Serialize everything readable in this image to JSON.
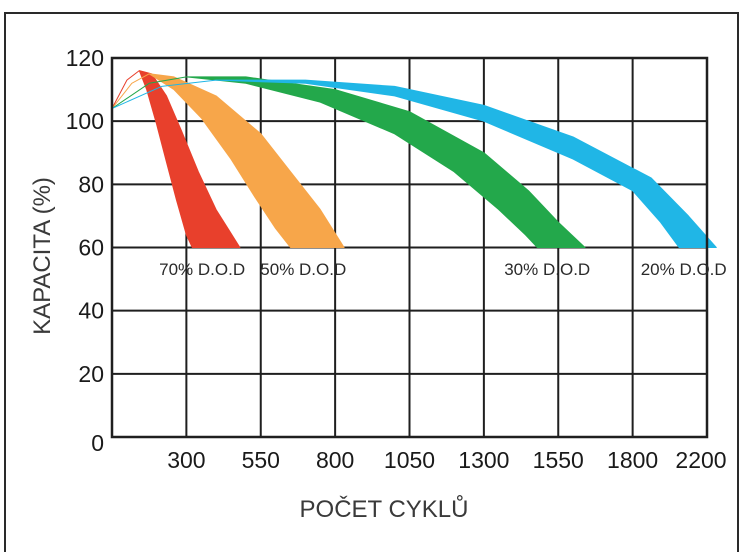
{
  "chart_data": {
    "type": "area",
    "title": "",
    "xlabel": "POČET CYKLŮ",
    "ylabel": "KAPACITA (%)",
    "x_tick_labels": [
      "0",
      "300",
      "550",
      "800",
      "1050",
      "1300",
      "1550",
      "1800",
      "2200"
    ],
    "y_tick_labels": [
      "0",
      "20",
      "40",
      "60",
      "80",
      "100",
      "120"
    ],
    "ylim": [
      0,
      120
    ],
    "grid": true,
    "series": [
      {
        "name": "70% D.O.D",
        "label": "70% D.O.D",
        "color": "#e8402c",
        "upper": [
          [
            0,
            104
          ],
          [
            60,
            113
          ],
          [
            110,
            116
          ],
          [
            160,
            115
          ],
          [
            220,
            108
          ],
          [
            280,
            97
          ],
          [
            340,
            84
          ],
          [
            400,
            72
          ],
          [
            440,
            66
          ],
          [
            480,
            60
          ]
        ],
        "lower": [
          [
            0,
            104
          ],
          [
            60,
            113
          ],
          [
            110,
            116
          ],
          [
            140,
            110
          ],
          [
            180,
            99
          ],
          [
            220,
            87
          ],
          [
            260,
            75
          ],
          [
            300,
            64
          ],
          [
            320,
            60
          ]
        ]
      },
      {
        "name": "50% D.O.D",
        "label": "50% D.O.D",
        "color": "#f7a64a",
        "upper": [
          [
            0,
            104
          ],
          [
            80,
            112
          ],
          [
            150,
            115
          ],
          [
            250,
            114
          ],
          [
            400,
            108
          ],
          [
            550,
            96
          ],
          [
            650,
            84
          ],
          [
            750,
            72
          ],
          [
            830,
            60
          ]
        ],
        "lower": [
          [
            0,
            104
          ],
          [
            80,
            112
          ],
          [
            150,
            115
          ],
          [
            250,
            110
          ],
          [
            350,
            101
          ],
          [
            450,
            88
          ],
          [
            530,
            76
          ],
          [
            600,
            66
          ],
          [
            650,
            60
          ]
        ]
      },
      {
        "name": "30% D.O.D",
        "label": "30% D.O.D",
        "color": "#23a84b",
        "upper": [
          [
            0,
            104
          ],
          [
            150,
            112
          ],
          [
            300,
            114
          ],
          [
            500,
            114
          ],
          [
            800,
            110
          ],
          [
            1050,
            103
          ],
          [
            1300,
            90
          ],
          [
            1450,
            78
          ],
          [
            1550,
            68
          ],
          [
            1640,
            60
          ]
        ],
        "lower": [
          [
            0,
            104
          ],
          [
            150,
            112
          ],
          [
            300,
            114
          ],
          [
            500,
            112
          ],
          [
            750,
            106
          ],
          [
            1000,
            96
          ],
          [
            1200,
            84
          ],
          [
            1350,
            72
          ],
          [
            1440,
            64
          ],
          [
            1480,
            60
          ]
        ]
      },
      {
        "name": "20% D.O.D",
        "label": "20% D.O.D",
        "color": "#20b6e6",
        "upper": [
          [
            0,
            104
          ],
          [
            200,
            111
          ],
          [
            400,
            113
          ],
          [
            700,
            113
          ],
          [
            1000,
            111
          ],
          [
            1300,
            105
          ],
          [
            1600,
            95
          ],
          [
            1900,
            82
          ],
          [
            2100,
            70
          ],
          [
            2250,
            60
          ]
        ],
        "lower": [
          [
            0,
            104
          ],
          [
            200,
            111
          ],
          [
            400,
            113
          ],
          [
            700,
            112
          ],
          [
            1000,
            108
          ],
          [
            1300,
            100
          ],
          [
            1600,
            88
          ],
          [
            1800,
            78
          ],
          [
            1950,
            68
          ],
          [
            2050,
            60
          ]
        ]
      }
    ]
  }
}
